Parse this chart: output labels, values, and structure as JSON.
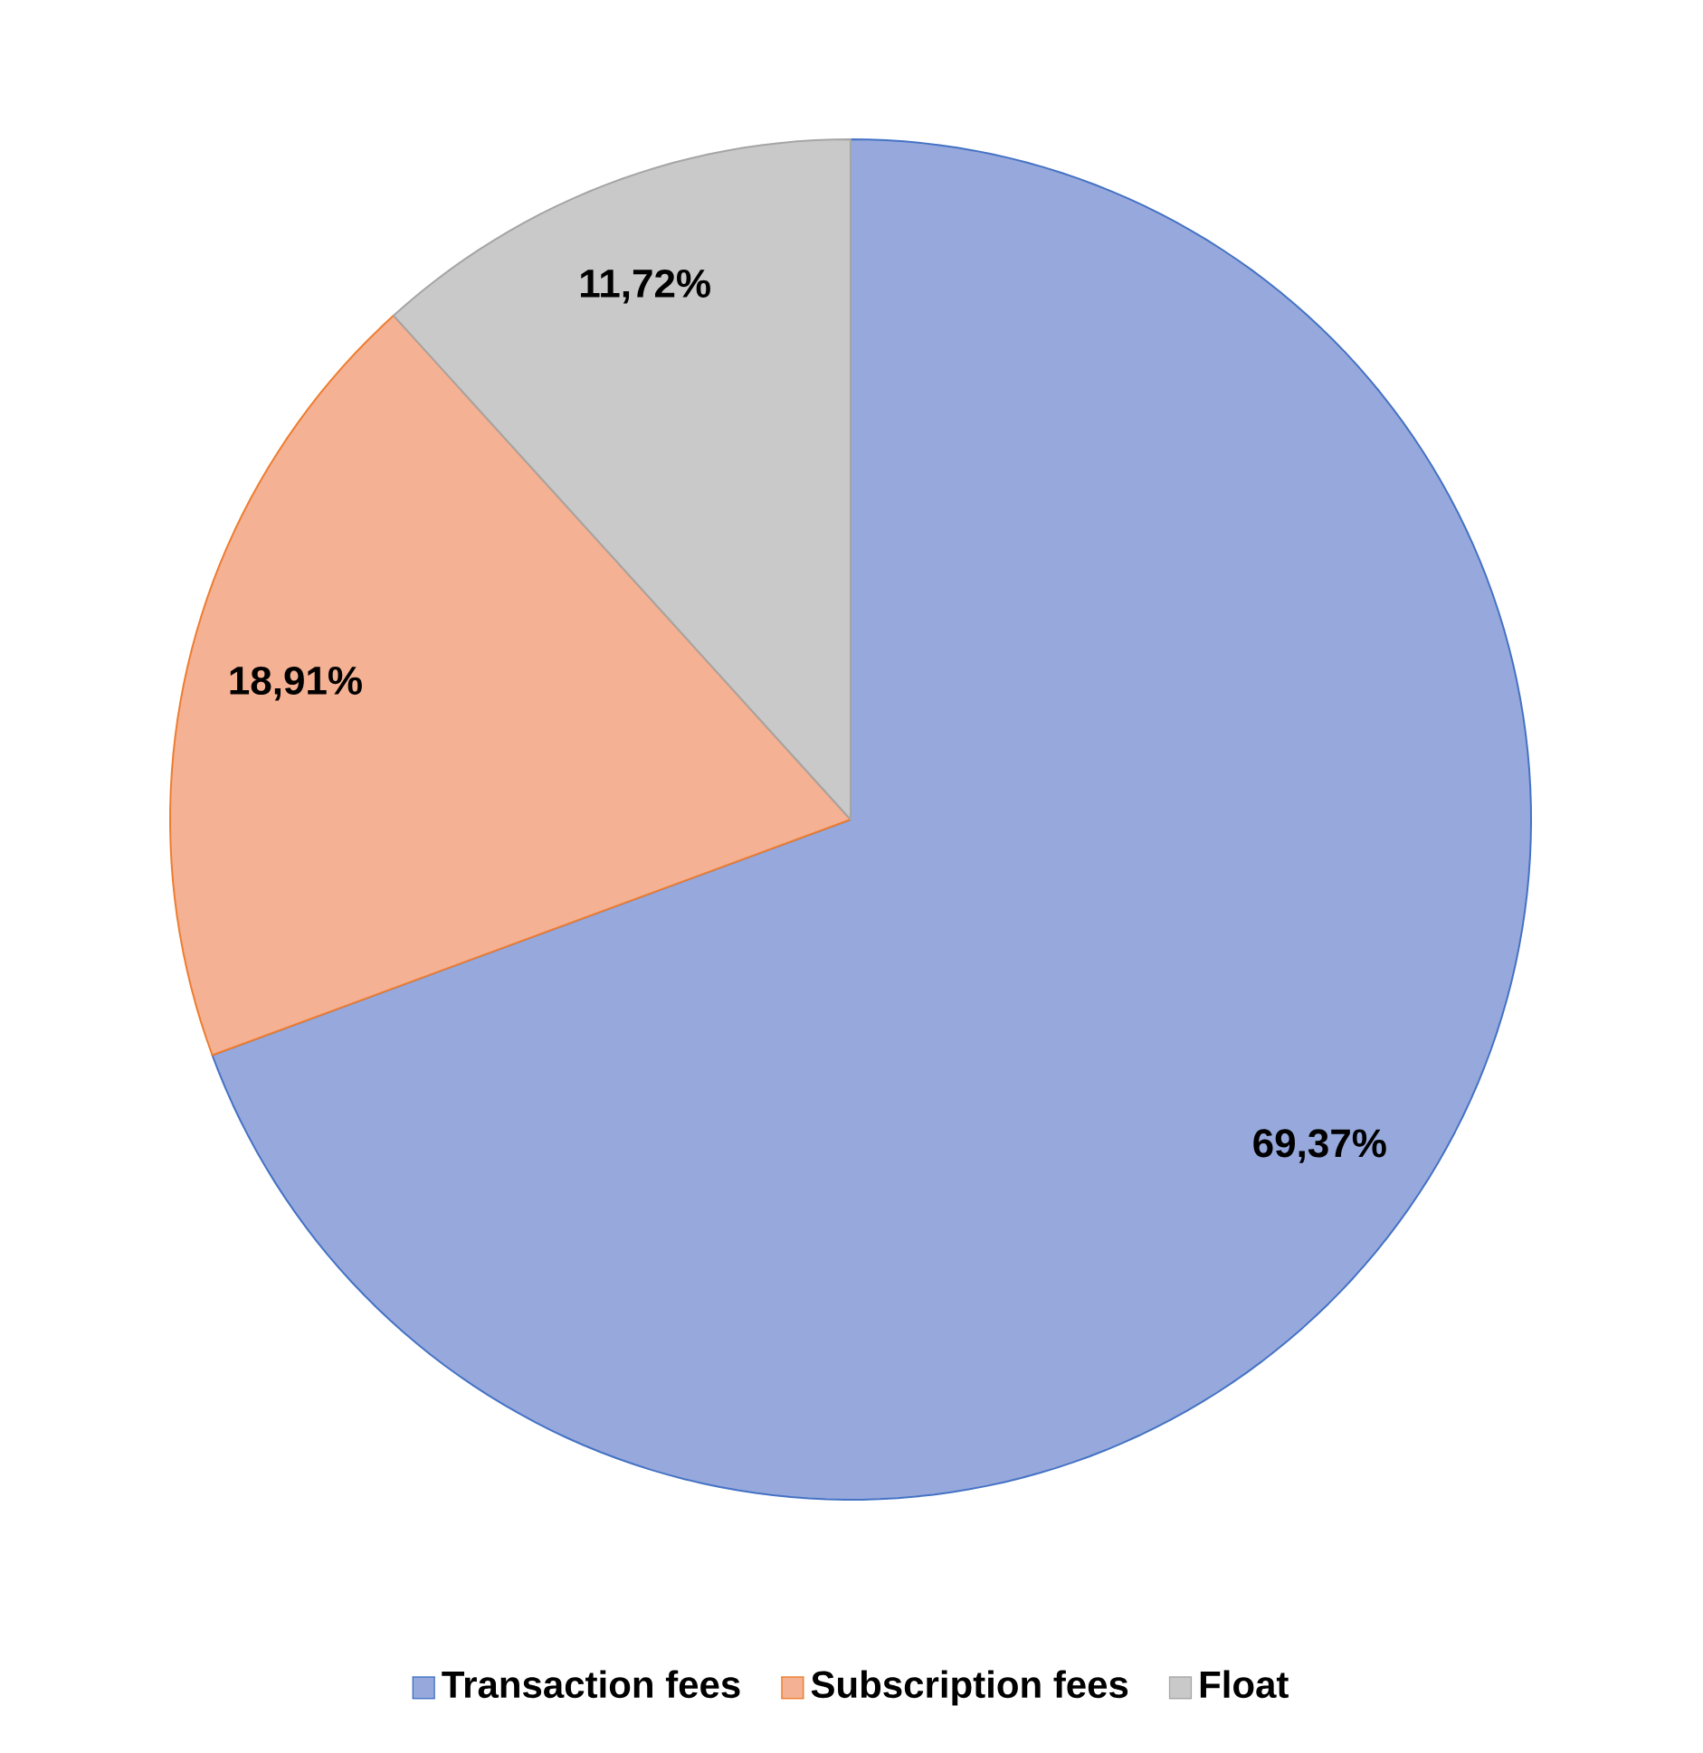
{
  "chart_data": {
    "type": "pie",
    "categories": [
      "Transaction fees",
      "Subscription fees",
      "Float"
    ],
    "values": [
      69.37,
      18.91,
      11.72
    ],
    "value_labels": [
      "69,37%",
      "18,91%",
      "11,72%"
    ],
    "colors": [
      "#97a9dc",
      "#f4b193",
      "#c9c9c9"
    ],
    "legend": "bottom"
  }
}
